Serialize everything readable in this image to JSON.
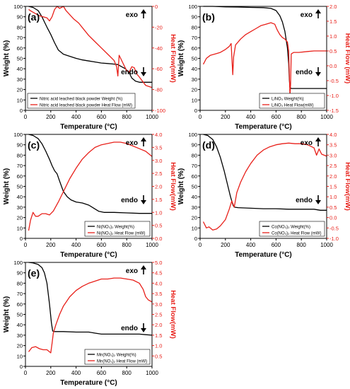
{
  "colors": {
    "weight": "#000000",
    "heat": "#e8201a",
    "frame": "#000000"
  },
  "chart_data": [
    {
      "type": "line",
      "panel": "(a)",
      "xlabel": "Temperature (°C)",
      "ylabel": "Weight (%)",
      "y2label": "Heat Flow(mW)",
      "xlim": [
        0,
        1000
      ],
      "ylim": [
        0,
        100
      ],
      "y2lim": [
        -100,
        0
      ],
      "xticks": [
        "0",
        "200",
        "400",
        "600",
        "800",
        "1000"
      ],
      "yticks": [
        "0",
        "10",
        "20",
        "30",
        "40",
        "50",
        "60",
        "70",
        "80",
        "90",
        "100"
      ],
      "y2ticks": [
        "-100",
        "-80",
        "-60",
        "-40",
        "-20",
        "0"
      ],
      "exo": "exo",
      "endo": "endo",
      "legend": [
        "Nitric acid leached black powder Weight (%)",
        "Nitric acid leached black powder Heat Flow (mW)"
      ],
      "legend_position": "bottom-left",
      "series": [
        {
          "name": "Nitric acid leached black powder Weight (%)",
          "axis": "left",
          "x": [
            25,
            60,
            100,
            130,
            150,
            170,
            200,
            230,
            260,
            300,
            350,
            400,
            450,
            500,
            550,
            600,
            650,
            700,
            730,
            760,
            790,
            820,
            840,
            870,
            900,
            950,
            1000
          ],
          "y": [
            100,
            99,
            96,
            90,
            85,
            80,
            73,
            65,
            58,
            54,
            52,
            50,
            48.5,
            47.5,
            46.5,
            45.5,
            45,
            44.5,
            44,
            42,
            40,
            36,
            31,
            28,
            27,
            27,
            27
          ]
        },
        {
          "name": "Nitric acid leached black powder Heat Flow (mW)",
          "axis": "right",
          "x": [
            25,
            50,
            80,
            110,
            140,
            170,
            190,
            210,
            230,
            250,
            270,
            300,
            320,
            350,
            380,
            420,
            460,
            500,
            550,
            600,
            650,
            700,
            720,
            730,
            740,
            760,
            780,
            800,
            820,
            840,
            860,
            880,
            900,
            950,
            1000
          ],
          "y": [
            -3,
            -5,
            -7,
            -9,
            -10,
            -11,
            -14,
            -10,
            -3,
            0,
            -2,
            0,
            -4,
            -8,
            -12,
            -16,
            -22,
            -28,
            -34,
            -40,
            -46,
            -52,
            -58,
            -67,
            -47,
            -52,
            -57,
            -62,
            -63,
            -58,
            -59,
            -65,
            -68,
            -76,
            -78
          ]
        }
      ]
    },
    {
      "type": "line",
      "panel": "(b)",
      "xlabel": "Temperature (°C)",
      "ylabel": "Weight (%)",
      "y2label": "Heat Flow (mW)",
      "xlim": [
        0,
        1000
      ],
      "ylim": [
        0,
        100
      ],
      "y2lim": [
        -1.5,
        2.0
      ],
      "xticks": [
        "0",
        "200",
        "400",
        "600",
        "800",
        "1000"
      ],
      "yticks": [
        "0",
        "10",
        "20",
        "30",
        "40",
        "50",
        "60",
        "70",
        "80",
        "90",
        "100"
      ],
      "y2ticks": [
        "-1.5",
        "-1.0",
        "-0.5",
        "0.0",
        "0.5",
        "1.0",
        "1.5",
        "2.0"
      ],
      "exo": "exo",
      "endo": "endo",
      "legend": [
        "LiNO₃ Weight(%)",
        "LiNO₃ Heat Flow(mW)"
      ],
      "legend_position": "bottom-right",
      "series": [
        {
          "name": "LiNO₃ Weight(%)",
          "axis": "left",
          "x": [
            25,
            100,
            200,
            300,
            400,
            500,
            560,
            600,
            630,
            650,
            670,
            690,
            700,
            705,
            710,
            720,
            800,
            900,
            1000
          ],
          "y": [
            100,
            100,
            99.5,
            99.3,
            99,
            98.8,
            98,
            96,
            91,
            85,
            76,
            60,
            45,
            30,
            22,
            21,
            21,
            21,
            21
          ]
        },
        {
          "name": "LiNO₃ Heat Flow(mW)",
          "axis": "right",
          "x": [
            25,
            50,
            80,
            120,
            160,
            200,
            230,
            245,
            252,
            258,
            265,
            280,
            320,
            360,
            400,
            440,
            480,
            520,
            560,
            590,
            610,
            630,
            650,
            670,
            690,
            700,
            705,
            710,
            715,
            720,
            740,
            780,
            850,
            900,
            950,
            1000
          ],
          "y": [
            0.05,
            0.25,
            0.35,
            0.4,
            0.45,
            0.55,
            0.65,
            0.75,
            0.2,
            -0.3,
            0.3,
            0.7,
            0.9,
            1.05,
            1.15,
            1.25,
            1.35,
            1.4,
            1.45,
            1.4,
            1.2,
            1.05,
            0.95,
            0.9,
            0.8,
            0.5,
            -0.3,
            -1.0,
            -0.6,
            0.4,
            0.45,
            0.45,
            0.48,
            0.5,
            0.5,
            0.5
          ]
        }
      ]
    },
    {
      "type": "line",
      "panel": "(c)",
      "xlabel": "Temperature (°C)",
      "ylabel": "Weight (%)",
      "y2label": "Heat Flow(mW)",
      "xlim": [
        0,
        1000
      ],
      "ylim": [
        0,
        100
      ],
      "y2lim": [
        0,
        4.0
      ],
      "xticks": [
        "0",
        "200",
        "400",
        "600",
        "800",
        "1000"
      ],
      "yticks": [
        "0",
        "10",
        "20",
        "30",
        "40",
        "50",
        "60",
        "70",
        "80",
        "90",
        "100"
      ],
      "y2ticks": [
        "0.0",
        "0.5",
        "1.0",
        "1.5",
        "2.0",
        "2.5",
        "3.0",
        "3.5",
        "4.0"
      ],
      "exo": "exo",
      "endo": "endo",
      "legend": [
        "Ni(NO₃)₂ Weight(%)",
        "Ni(NO₃)₂ Heat Flow (mW)"
      ],
      "legend_position": "bottom-right",
      "series": [
        {
          "name": "Ni(NO₃)₂ Weight(%)",
          "axis": "left",
          "x": [
            25,
            60,
            100,
            130,
            160,
            190,
            210,
            230,
            250,
            270,
            300,
            330,
            360,
            400,
            450,
            500,
            540,
            580,
            620,
            700,
            800,
            900,
            1000
          ],
          "y": [
            100,
            99,
            96,
            91,
            84,
            76,
            70,
            65,
            62,
            55,
            45,
            40,
            37,
            35,
            34,
            32,
            29,
            26,
            25,
            25,
            24.5,
            24,
            24
          ]
        },
        {
          "name": "Ni(NO₃)₂ Heat Flow (mW)",
          "axis": "right",
          "x": [
            25,
            40,
            60,
            80,
            100,
            130,
            160,
            190,
            220,
            260,
            300,
            350,
            400,
            450,
            500,
            550,
            600,
            650,
            700,
            750,
            800,
            850,
            900,
            950,
            1000
          ],
          "y": [
            0.3,
            0.7,
            1.0,
            0.85,
            0.85,
            0.95,
            0.95,
            0.9,
            1.05,
            1.4,
            1.8,
            2.3,
            2.7,
            3.05,
            3.3,
            3.5,
            3.6,
            3.65,
            3.7,
            3.7,
            3.65,
            3.55,
            3.45,
            3.35,
            3.15
          ]
        }
      ]
    },
    {
      "type": "line",
      "panel": "(d)",
      "xlabel": "Temperature (°C)",
      "ylabel": "Weight (%)",
      "y2label": "Heat Flow(mW)",
      "xlim": [
        0,
        1000
      ],
      "ylim": [
        0,
        100
      ],
      "y2lim": [
        -1.0,
        4.0
      ],
      "xticks": [
        "0",
        "200",
        "400",
        "600",
        "800",
        "1000"
      ],
      "yticks": [
        "0",
        "10",
        "20",
        "30",
        "40",
        "50",
        "60",
        "70",
        "80",
        "90",
        "100"
      ],
      "y2ticks": [
        "-1.0",
        "-0.5",
        "0.0",
        "0.5",
        "1.0",
        "1.5",
        "2.0",
        "2.5",
        "3.0",
        "3.5",
        "4.0"
      ],
      "exo": "exo",
      "endo": "endo",
      "legend": [
        "Co(NO₃)₂ Weight(%)",
        "Co(NO₃)₂ Heat Flow (mW)"
      ],
      "legend_position": "bottom-right",
      "series": [
        {
          "name": "Co(NO₃)₂ Weight(%)",
          "axis": "left",
          "x": [
            25,
            60,
            100,
            130,
            160,
            190,
            220,
            240,
            260,
            270,
            300,
            400,
            500,
            600,
            700,
            800,
            900,
            950,
            1000
          ],
          "y": [
            100,
            99,
            95,
            88,
            78,
            65,
            50,
            40,
            32,
            30,
            29.5,
            29,
            28.5,
            28.5,
            28,
            28,
            28,
            27,
            27
          ]
        },
        {
          "name": "Co(NO₃)₂ Heat Flow (mW)",
          "axis": "right",
          "x": [
            25,
            50,
            70,
            100,
            130,
            160,
            200,
            230,
            250,
            270,
            290,
            320,
            360,
            400,
            450,
            500,
            550,
            600,
            650,
            700,
            750,
            800,
            850,
            900,
            920,
            940,
            960,
            1000
          ],
          "y": [
            -0.2,
            -0.5,
            -0.45,
            -0.6,
            -0.55,
            -0.4,
            -0.1,
            0.4,
            0.8,
            0.5,
            1.2,
            1.7,
            2.2,
            2.6,
            3.0,
            3.25,
            3.4,
            3.5,
            3.55,
            3.58,
            3.55,
            3.55,
            3.5,
            3.35,
            3.0,
            3.3,
            3.05,
            2.95
          ]
        }
      ]
    },
    {
      "type": "line",
      "panel": "(e)",
      "xlabel": "Temperature (°C)",
      "ylabel": "Weight (%)",
      "y2label": "Heat Flow(mW)",
      "xlim": [
        0,
        1000
      ],
      "ylim": [
        0,
        100
      ],
      "y2lim": [
        0,
        5.0
      ],
      "xticks": [
        "0",
        "200",
        "400",
        "600",
        "800",
        "1000"
      ],
      "yticks": [
        "0",
        "10",
        "20",
        "30",
        "40",
        "50",
        "60",
        "70",
        "80",
        "90",
        "100"
      ],
      "y2ticks": [
        "0.5",
        "1.0",
        "1.5",
        "2.0",
        "2.5",
        "3.0",
        "3.5",
        "4.0",
        "4.5",
        "5.0"
      ],
      "exo": "exo",
      "endo": "endo",
      "legend": [
        "Mn(NO₃)₂ Weight(%)",
        "Mn(NO₃)₂ Heat Flow (mW)"
      ],
      "legend_position": "bottom-right",
      "series": [
        {
          "name": "Mn(NO₃)₂ Weight(%)",
          "axis": "left",
          "x": [
            25,
            60,
            100,
            130,
            150,
            170,
            190,
            205,
            215,
            230,
            300,
            400,
            500,
            550,
            600,
            700,
            800,
            900,
            950,
            1000
          ],
          "y": [
            100,
            99.5,
            98,
            95,
            90,
            80,
            60,
            42,
            34,
            33.5,
            33.5,
            33,
            33,
            32,
            31,
            31,
            31,
            31,
            30.5,
            30
          ]
        },
        {
          "name": "Mn(NO₃)₂ Heat Flow (mW)",
          "axis": "right",
          "x": [
            25,
            50,
            80,
            110,
            140,
            170,
            200,
            210,
            220,
            240,
            270,
            300,
            350,
            400,
            450,
            500,
            550,
            600,
            650,
            700,
            750,
            800,
            850,
            900,
            930,
            950,
            970,
            1000
          ],
          "y": [
            0.7,
            0.9,
            0.95,
            0.85,
            0.8,
            0.8,
            0.65,
            1.1,
            1.6,
            2.0,
            2.5,
            2.9,
            3.35,
            3.65,
            3.85,
            4.0,
            4.1,
            4.2,
            4.2,
            4.25,
            4.25,
            4.2,
            4.15,
            4.0,
            3.7,
            3.35,
            3.2,
            3.1
          ]
        }
      ]
    }
  ]
}
